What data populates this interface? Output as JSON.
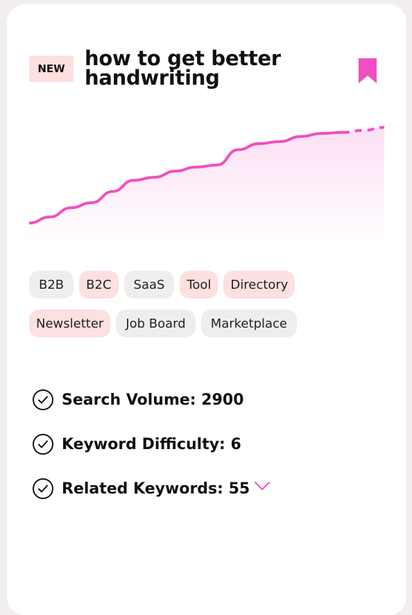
{
  "card": {
    "badge": "NEW",
    "title": "how to get better handwriting",
    "accent_color": "#f04fbf",
    "icons": {
      "bookmark": "bookmark-icon",
      "check": "check-circle-icon",
      "expand": "chevron-down-icon"
    }
  },
  "chart_data": {
    "type": "area",
    "y": [
      10,
      16,
      25,
      30,
      41,
      52,
      55,
      61,
      65,
      67,
      82,
      88,
      90,
      95,
      98,
      99,
      101,
      104
    ],
    "forecast_from_index": 15,
    "color": "#f04fbf"
  },
  "tags": {
    "row1": [
      {
        "label": "B2B",
        "style": "gray"
      },
      {
        "label": "B2C",
        "style": "pink"
      },
      {
        "label": "SaaS",
        "style": "gray"
      },
      {
        "label": "Tool",
        "style": "pink"
      },
      {
        "label": "Directory",
        "style": "pink"
      }
    ],
    "row2": [
      {
        "label": "Newsletter",
        "style": "pink"
      },
      {
        "label": "Job Board",
        "style": "gray"
      },
      {
        "label": "Marketplace",
        "style": "gray"
      }
    ]
  },
  "stats": {
    "search_volume": "Search Volume: 2900",
    "keyword_difficulty": "Keyword Difficulty: 6",
    "related_keywords": "Related Keywords: 55"
  }
}
